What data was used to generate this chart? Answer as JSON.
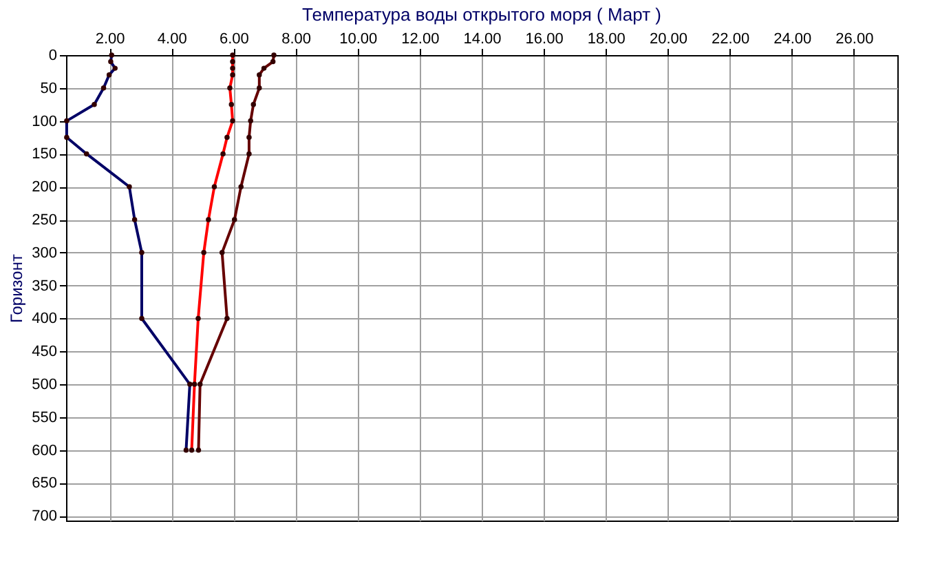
{
  "chart_data": {
    "type": "line",
    "title": "Температура воды открытого моря     ( Март )",
    "ylabel": "Горизонт",
    "series": [
      {
        "color": "#000066",
        "x": [
          2.07,
          2.04,
          2.18,
          1.99,
          1.81,
          1.51,
          0.62,
          0.62,
          1.26,
          2.64,
          2.81,
          3.04,
          3.04,
          4.59,
          4.47
        ],
        "values": [
          0,
          10,
          20,
          30,
          50,
          75,
          100,
          125,
          150,
          200,
          250,
          300,
          400,
          500,
          600
        ]
      },
      {
        "color": "#ff0000",
        "x": [
          5.97,
          5.97,
          5.97,
          5.97,
          5.88,
          5.93,
          5.97,
          5.79,
          5.66,
          5.38,
          5.19,
          5.04,
          4.86,
          4.74,
          4.65
        ],
        "values": [
          0,
          10,
          20,
          30,
          50,
          75,
          100,
          125,
          150,
          200,
          250,
          300,
          400,
          500,
          600
        ]
      },
      {
        "color": "#660000",
        "x": [
          7.3,
          7.27,
          6.98,
          6.83,
          6.83,
          6.64,
          6.55,
          6.5,
          6.5,
          6.24,
          6.03,
          5.63,
          5.79,
          4.92,
          4.87
        ],
        "values": [
          0,
          10,
          20,
          30,
          50,
          75,
          100,
          125,
          150,
          200,
          250,
          300,
          400,
          500,
          600
        ]
      }
    ],
    "xlim": [
      0.6,
      27.4
    ],
    "xticks": [
      {
        "value": 2,
        "label": "2.00"
      },
      {
        "value": 4,
        "label": "4.00"
      },
      {
        "value": 6,
        "label": "6.00"
      },
      {
        "value": 8,
        "label": "8.00"
      },
      {
        "value": 10,
        "label": "10.00"
      },
      {
        "value": 12,
        "label": "12.00"
      },
      {
        "value": 14,
        "label": "14.00"
      },
      {
        "value": 16,
        "label": "16.00"
      },
      {
        "value": 18,
        "label": "18.00"
      },
      {
        "value": 20,
        "label": "20.00"
      },
      {
        "value": 22,
        "label": "22.00"
      },
      {
        "value": 24,
        "label": "24.00"
      },
      {
        "value": 26,
        "label": "26.00"
      }
    ],
    "ylim": [
      707,
      0
    ],
    "yticks": [
      0,
      50,
      100,
      150,
      200,
      250,
      300,
      350,
      400,
      450,
      500,
      550,
      600,
      650,
      700
    ],
    "grid": true,
    "marker": "circle",
    "line_style": "solid"
  }
}
